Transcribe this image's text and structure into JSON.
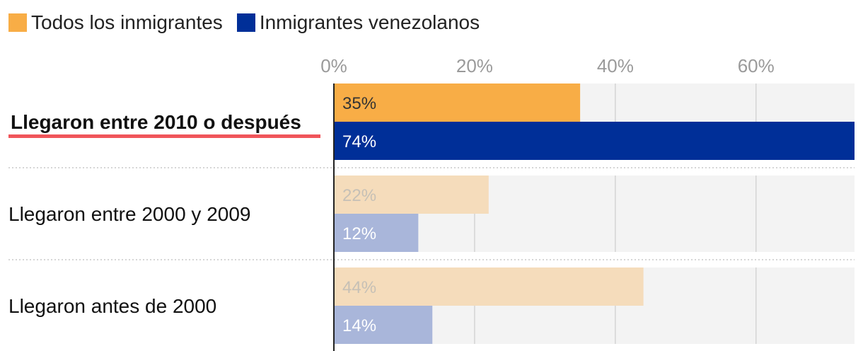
{
  "colors": {
    "all": "#f8ad46",
    "venezuelan": "#002f98",
    "all_faded": "#f5dcbb",
    "venezuelan_faded": "#a9b6da",
    "track": "#f3f3f3",
    "highlight_underline": "#f0555a"
  },
  "chart_data": {
    "type": "bar",
    "orientation": "horizontal",
    "categories": [
      "Llegaron entre 2010 o después",
      "Llegaron entre 2000 y 2009",
      "Llegaron antes de 2000"
    ],
    "highlighted_category": "Llegaron entre 2010 o después",
    "series": [
      {
        "name": "Todos los inmigrantes",
        "values": [
          35,
          22,
          44
        ],
        "labels": [
          "35%",
          "22%",
          "44%"
        ]
      },
      {
        "name": "Inmigrantes venezolanos",
        "values": [
          74,
          12,
          14
        ],
        "labels": [
          "74%",
          "12%",
          "14%"
        ]
      }
    ],
    "xlim": [
      0,
      74
    ],
    "ticks": [
      0,
      20,
      40,
      60
    ],
    "tick_labels": [
      "0%",
      "20%",
      "40%",
      "60%"
    ],
    "legend_position": "top-left",
    "grid": true
  }
}
